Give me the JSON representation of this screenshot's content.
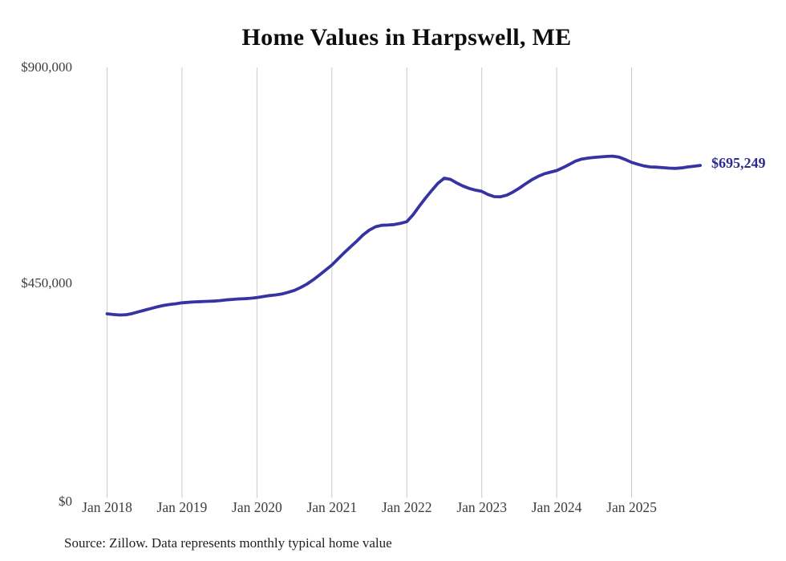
{
  "chart_data": {
    "type": "line",
    "title": "Home Values in Harpswell, ME",
    "xlabel": "",
    "ylabel": "",
    "ylim": [
      0,
      900000
    ],
    "grid": "vertical-yearly-only",
    "legend_position": "none",
    "line_color": "#3733a3",
    "end_label_text": "$695,249",
    "last_value": 695249,
    "y_ticks": [
      "$900,000",
      "$450,000",
      "$0"
    ],
    "x_ticks": [
      "Jan 2018",
      "Jan 2019",
      "Jan 2020",
      "Jan 2021",
      "Jan 2022",
      "Jan 2023",
      "Jan 2024",
      "Jan 2025"
    ],
    "source_note": "Source: Zillow. Data represents monthly typical home value",
    "series": [
      {
        "name": "Monthly typical home value",
        "start_month": "Jan 2018",
        "end_month": "Dec 2025",
        "frequency": "monthly",
        "values": [
          385000,
          383500,
          382500,
          383000,
          385500,
          389000,
          392500,
          396000,
          399500,
          402500,
          404500,
          406000,
          408000,
          409000,
          410000,
          410500,
          411000,
          411500,
          412500,
          414000,
          415000,
          416000,
          416500,
          417500,
          419000,
          421000,
          423000,
          424500,
          426500,
          430000,
          434000,
          440000,
          447000,
          456000,
          466000,
          476500,
          487000,
          500000,
          513000,
          525000,
          537000,
          550000,
          560000,
          567000,
          570000,
          570500,
          571500,
          574000,
          577500,
          592000,
          610000,
          627000,
          643000,
          658000,
          668500,
          666000,
          658500,
          652000,
          647000,
          643500,
          641000,
          634500,
          630000,
          629500,
          633000,
          639500,
          647500,
          656500,
          665000,
          672000,
          677500,
          681000,
          684500,
          690500,
          697000,
          704000,
          708500,
          710500,
          712000,
          713000,
          714000,
          714500,
          712500,
          707500,
          701500,
          697500,
          694000,
          692000,
          691500,
          690500,
          689500,
          689000,
          690000,
          692000,
          693500,
          695249
        ]
      }
    ]
  }
}
